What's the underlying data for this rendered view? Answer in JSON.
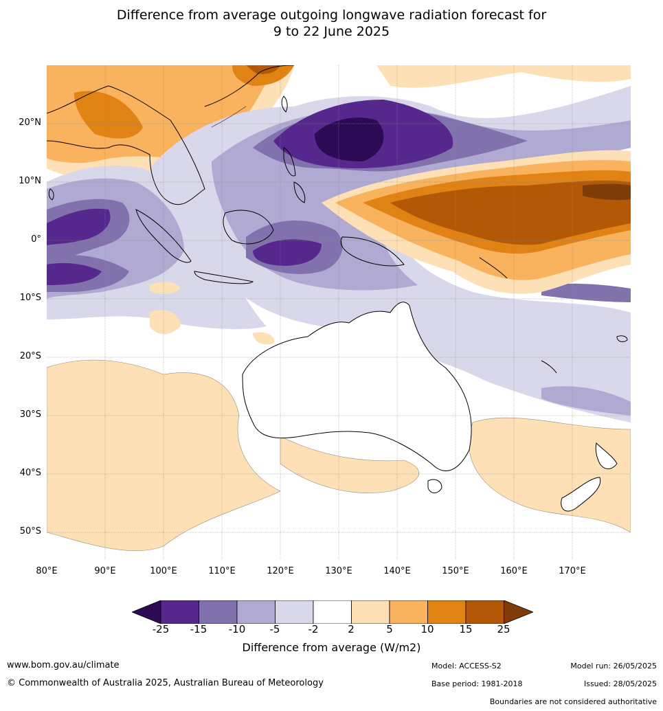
{
  "title_line1": "Difference from average outgoing longwave radiation forecast for",
  "title_line2": "9 to 22 June 2025",
  "lat_ticks": [
    "20°N",
    "10°N",
    "0°",
    "10°S",
    "20°S",
    "30°S",
    "40°S",
    "50°S"
  ],
  "lon_ticks": [
    "80°E",
    "90°E",
    "100°E",
    "110°E",
    "120°E",
    "130°E",
    "140°E",
    "150°E",
    "160°E",
    "170°E"
  ],
  "legend": {
    "label": "Difference from average (W/m2)",
    "ticks": [
      "-25",
      "-15",
      "-10",
      "-5",
      "-2",
      "2",
      "5",
      "10",
      "15",
      "25"
    ],
    "colors": [
      "#2d0a54",
      "#56288e",
      "#8172ad",
      "#b0a9d2",
      "#d8d8ea",
      "#ffffff",
      "#fde0b6",
      "#f9b25d",
      "#e08214",
      "#b35806",
      "#7f3b08"
    ]
  },
  "footer": {
    "website": "www.bom.gov.au/climate",
    "copyright": "© Commonwealth of Australia 2025, Australian Bureau of Meteorology",
    "model": "Model: ACCESS-S2",
    "base_period": "Base period: 1981-2018",
    "model_run": "Model run: 26/05/2025",
    "issued": "Issued: 28/05/2025",
    "disclaimer": "Boundaries are not considered authoritative"
  }
}
